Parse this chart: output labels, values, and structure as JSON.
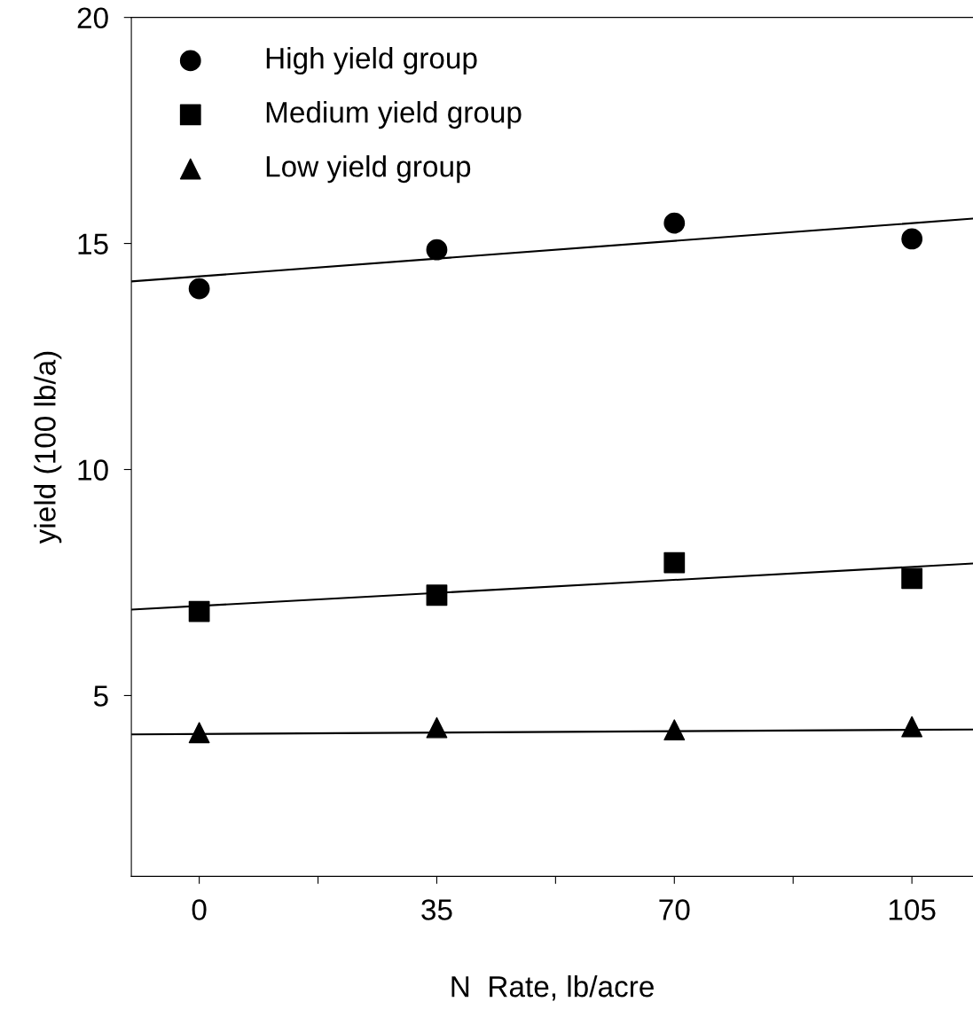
{
  "chart_data": {
    "type": "scatter",
    "xlabel": "N  Rate, lb/acre",
    "ylabel": "yield (100 lb/a)",
    "xlim": [
      -10,
      114
    ],
    "ylim": [
      1,
      20
    ],
    "xticks": [
      0,
      {
        "value": 17.5,
        "label": null
      },
      35,
      {
        "value": 52.5,
        "label": null
      },
      70,
      {
        "value": 87.5,
        "label": null
      },
      105
    ],
    "yticks": [
      5,
      10,
      15,
      20
    ],
    "grid": false,
    "legend": "top left",
    "series": [
      {
        "name": "High yield group",
        "marker": "circle",
        "color": "#000000",
        "x": [
          0,
          35,
          70,
          105
        ],
        "values": [
          14.0,
          14.86,
          15.45,
          15.1
        ]
      },
      {
        "name": "Medium yield group",
        "marker": "square",
        "color": "#000000",
        "x": [
          0,
          35,
          70,
          105
        ],
        "values": [
          6.86,
          7.22,
          7.94,
          7.59
        ]
      },
      {
        "name": "Low yield group",
        "marker": "triangle",
        "color": "#000000",
        "x": [
          0,
          35,
          70,
          105
        ],
        "values": [
          4.18,
          4.29,
          4.24,
          4.31
        ]
      },
      {
        "type": "line",
        "marker": "none",
        "line_style": "solid",
        "color": "#000000",
        "x": [
          -10,
          114
        ],
        "values": [
          14.16,
          15.55
        ]
      },
      {
        "type": "line",
        "marker": "none",
        "line_style": "solid",
        "color": "#000000",
        "x": [
          -10,
          114
        ],
        "values": [
          6.9,
          7.92
        ]
      },
      {
        "type": "line",
        "marker": "none",
        "line_style": "solid",
        "color": "#000000",
        "x": [
          -10,
          114
        ],
        "values": [
          4.14,
          4.25
        ]
      }
    ]
  }
}
